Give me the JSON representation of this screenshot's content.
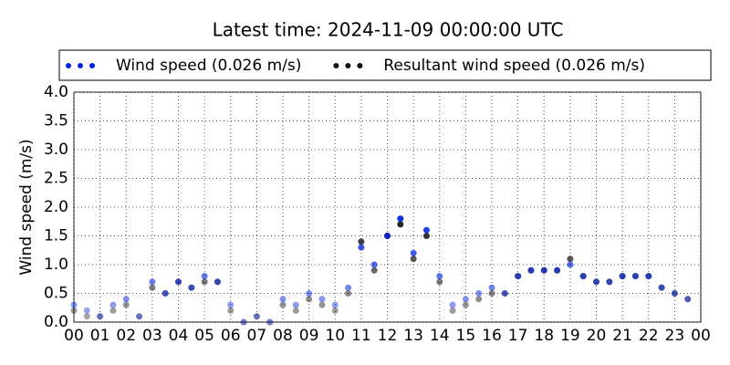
{
  "chart_data": {
    "type": "scatter",
    "title": "Latest time: 2024-11-09 00:00:00 UTC",
    "y_label": "Wind speed (m/s)",
    "grid": true,
    "legend": "top",
    "xlim": [
      0,
      24
    ],
    "ylim": [
      0,
      4
    ],
    "xticks": [
      {
        "value": 0,
        "label": "00"
      },
      {
        "value": 1,
        "label": "01"
      },
      {
        "value": 2,
        "label": "02"
      },
      {
        "value": 3,
        "label": "03"
      },
      {
        "value": 4,
        "label": "04"
      },
      {
        "value": 5,
        "label": "05"
      },
      {
        "value": 6,
        "label": "06"
      },
      {
        "value": 7,
        "label": "07"
      },
      {
        "value": 8,
        "label": "08"
      },
      {
        "value": 9,
        "label": "09"
      },
      {
        "value": 10,
        "label": "10"
      },
      {
        "value": 11,
        "label": "11"
      },
      {
        "value": 12,
        "label": "12"
      },
      {
        "value": 13,
        "label": "13"
      },
      {
        "value": 14,
        "label": "14"
      },
      {
        "value": 15,
        "label": "15"
      },
      {
        "value": 16,
        "label": "16"
      },
      {
        "value": 17,
        "label": "17"
      },
      {
        "value": 18,
        "label": "18"
      },
      {
        "value": 19,
        "label": "19"
      },
      {
        "value": 20,
        "label": "20"
      },
      {
        "value": 21,
        "label": "21"
      },
      {
        "value": 22,
        "label": "22"
      },
      {
        "value": 23,
        "label": "23"
      },
      {
        "value": 24,
        "label": "00"
      }
    ],
    "yticks": [
      {
        "value": 0,
        "label": "0.0"
      },
      {
        "value": 0.5,
        "label": "0.5"
      },
      {
        "value": 1,
        "label": "1.0"
      },
      {
        "value": 1.5,
        "label": "1.5"
      },
      {
        "value": 2,
        "label": "2.0"
      },
      {
        "value": 2.5,
        "label": "2.5"
      },
      {
        "value": 3,
        "label": "3.0"
      },
      {
        "value": 3.5,
        "label": "3.5"
      },
      {
        "value": 4,
        "label": "4.0"
      }
    ],
    "x": [
      0,
      0.5,
      1,
      1.5,
      2,
      2.5,
      3,
      3.5,
      4,
      4.5,
      5,
      5.5,
      6,
      6.5,
      7,
      7.5,
      8,
      8.5,
      9,
      9.5,
      10,
      10.5,
      11,
      11.5,
      12,
      12.5,
      13,
      13.5,
      14,
      14.5,
      15,
      15.5,
      16,
      16.5,
      17,
      17.5,
      18,
      18.5,
      19,
      19.5,
      20,
      20.5,
      21,
      21.5,
      22,
      22.5,
      23,
      23.5
    ],
    "series": [
      {
        "name": "Wind speed (0.026 m/s)",
        "color": "#0022dd",
        "values": [
          0.3,
          0.2,
          0.1,
          0.3,
          0.4,
          0.1,
          0.7,
          0.5,
          0.7,
          0.6,
          0.8,
          0.7,
          0.3,
          0.0,
          0.1,
          0.0,
          0.4,
          0.3,
          0.5,
          0.4,
          0.3,
          0.6,
          1.3,
          1.0,
          1.5,
          1.8,
          1.2,
          1.6,
          0.8,
          0.3,
          0.4,
          0.5,
          0.6,
          0.5,
          0.8,
          0.9,
          0.9,
          0.9,
          1.0,
          0.8,
          0.7,
          0.7,
          0.8,
          0.8,
          0.8,
          0.6,
          0.5,
          0.4
        ]
      },
      {
        "name": "Resultant wind speed (0.026 m/s)",
        "color": "#111111",
        "values": [
          0.2,
          0.1,
          0.1,
          0.2,
          0.3,
          0.1,
          0.6,
          0.5,
          0.7,
          0.6,
          0.7,
          0.7,
          0.2,
          0.0,
          0.1,
          0.0,
          0.3,
          0.2,
          0.4,
          0.3,
          0.2,
          0.5,
          1.4,
          0.9,
          1.5,
          1.7,
          1.1,
          1.5,
          0.7,
          0.2,
          0.3,
          0.4,
          0.5,
          0.5,
          0.8,
          0.9,
          0.9,
          0.9,
          1.1,
          0.8,
          0.7,
          0.7,
          0.8,
          0.8,
          0.8,
          0.6,
          0.5,
          0.4
        ]
      }
    ]
  }
}
